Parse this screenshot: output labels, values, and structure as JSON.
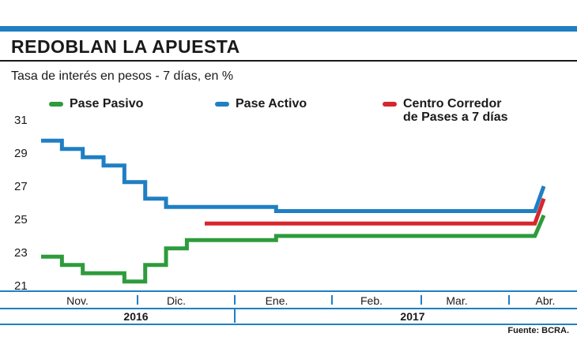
{
  "header": {
    "title": "REDOBLAN LA APUESTA",
    "subtitle": "Tasa de interés en pesos - 7 días, en %",
    "source": "Fuente: BCRA."
  },
  "chart_data": {
    "type": "line",
    "title": "REDOBLAN LA APUESTA",
    "subtitle": "Tasa de interés en pesos - 7 días, en %",
    "ylabel": "",
    "xlabel": "",
    "ylim": [
      21,
      31
    ],
    "yticks": [
      "31",
      "29",
      "27",
      "25",
      "23",
      "21"
    ],
    "month_labels": [
      "Nov.",
      "Dic.",
      "Ene.",
      "Feb.",
      "Mar.",
      "Abr."
    ],
    "year_labels": [
      "2016",
      "2017"
    ],
    "x_domain": [
      "2016-10-25",
      "2017-04-12"
    ],
    "grid": false,
    "legend_position": "top",
    "series": [
      {
        "name": "Pase Pasivo",
        "color": "#2e9b3c",
        "step": true,
        "points": [
          [
            "2016-10-25",
            22.75
          ],
          [
            "2016-11-01",
            22.25
          ],
          [
            "2016-11-08",
            21.75
          ],
          [
            "2016-11-22",
            21.25
          ],
          [
            "2016-11-29",
            22.25
          ],
          [
            "2016-12-06",
            23.25
          ],
          [
            "2016-12-13",
            23.75
          ],
          [
            "2017-01-12",
            24.0
          ],
          [
            "2017-04-09",
            24.0
          ],
          [
            "2017-04-12",
            25.25
          ]
        ]
      },
      {
        "name": "Pase Activo",
        "color": "#1f7fc4",
        "step": true,
        "points": [
          [
            "2016-10-25",
            29.75
          ],
          [
            "2016-11-01",
            29.25
          ],
          [
            "2016-11-08",
            28.75
          ],
          [
            "2016-11-15",
            28.25
          ],
          [
            "2016-11-22",
            27.25
          ],
          [
            "2016-11-29",
            26.25
          ],
          [
            "2016-12-06",
            25.75
          ],
          [
            "2017-01-12",
            25.5
          ],
          [
            "2017-04-09",
            25.5
          ],
          [
            "2017-04-12",
            27.0
          ]
        ]
      },
      {
        "name": "Centro Corredor\nde Pases a 7 días",
        "color": "#d7262d",
        "step": true,
        "points": [
          [
            "2016-12-19",
            24.75
          ],
          [
            "2017-04-09",
            24.75
          ],
          [
            "2017-04-12",
            26.25
          ]
        ]
      }
    ]
  }
}
